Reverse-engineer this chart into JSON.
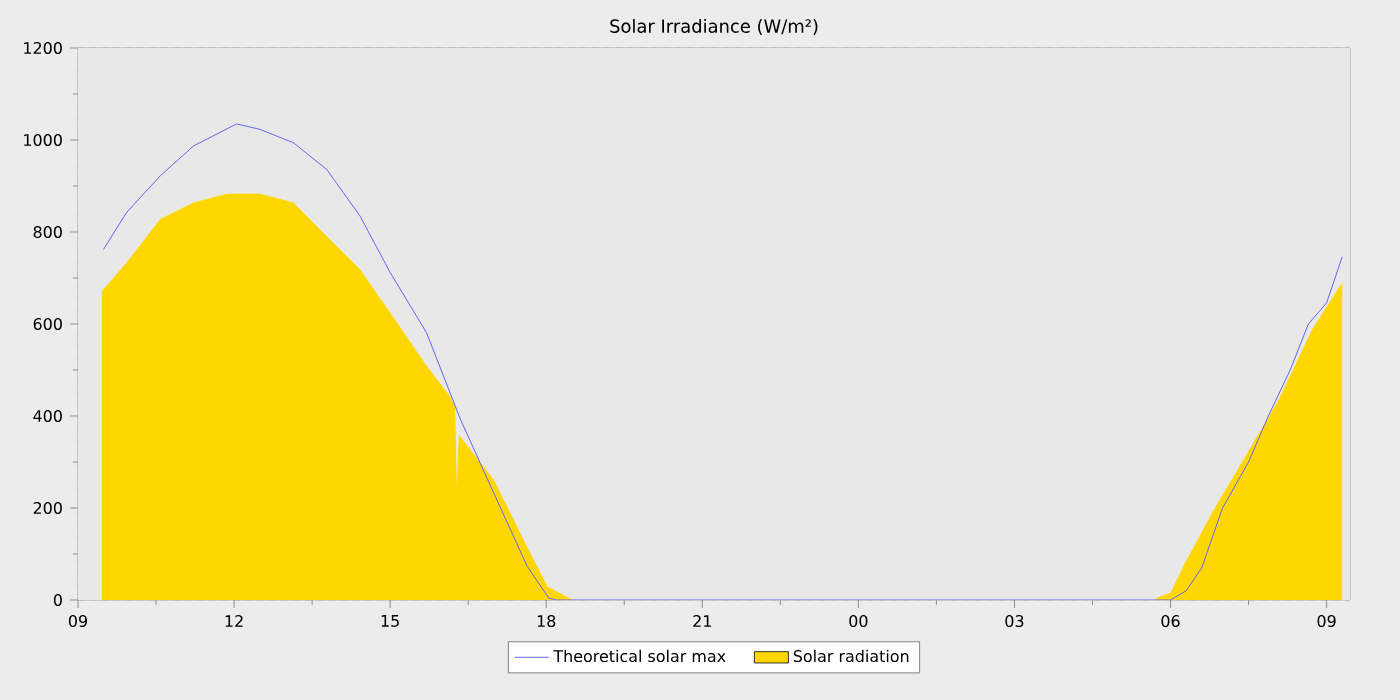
{
  "chart_data": {
    "type": "line",
    "title": "Solar Irradiance (W/m²)",
    "xlim": [
      9,
      33.45
    ],
    "xticks": [
      {
        "value": 9,
        "label": "09"
      },
      {
        "value": 12,
        "label": "12"
      },
      {
        "value": 15,
        "label": "15"
      },
      {
        "value": 18,
        "label": "18"
      },
      {
        "value": 21,
        "label": "21"
      },
      {
        "value": 24,
        "label": "00"
      },
      {
        "value": 27,
        "label": "03"
      },
      {
        "value": 30,
        "label": "06"
      },
      {
        "value": 33,
        "label": "09"
      }
    ],
    "ylim": [
      0,
      1200
    ],
    "yticks": [
      0,
      200,
      400,
      600,
      800,
      1000,
      1200
    ],
    "grid": true,
    "legend": "bottom",
    "series": [
      {
        "name": "Solar radiation",
        "type": "area",
        "color": "#ffd700",
        "x": [
          9.46,
          9.93,
          10.58,
          11.22,
          11.86,
          12.5,
          13.14,
          13.78,
          14.42,
          15.0,
          15.7,
          16.15,
          16.25,
          16.28,
          16.32,
          16.99,
          17.63,
          18.03,
          18.46,
          18.5,
          29.7,
          29.74,
          30.0,
          30.28,
          30.8,
          31.44,
          32.08,
          32.72,
          33.3
        ],
        "values": [
          671,
          733,
          828,
          864,
          883,
          883,
          864,
          791,
          719,
          625,
          509,
          443,
          420,
          247,
          359,
          262,
          116,
          29,
          3,
          0,
          0,
          5,
          16,
          81,
          190,
          313,
          436,
          588,
          690
        ]
      },
      {
        "name": "Theoretical solar max",
        "color": "#6464f0",
        "x": [
          9.49,
          9.93,
          10.58,
          11.22,
          12.05,
          12.5,
          13.14,
          13.78,
          14.42,
          15.0,
          15.7,
          16.35,
          16.99,
          17.63,
          18.05,
          18.2,
          30.0,
          30.3,
          30.6,
          31.0,
          31.5,
          31.88,
          32.3,
          32.65,
          33.0,
          33.3
        ],
        "values": [
          762,
          842,
          922,
          987,
          1035,
          1023,
          994,
          936,
          835,
          712,
          581,
          393,
          233,
          74,
          4,
          0,
          0,
          20,
          70,
          200,
          300,
          400,
          500,
          600,
          646,
          746
        ]
      }
    ]
  }
}
